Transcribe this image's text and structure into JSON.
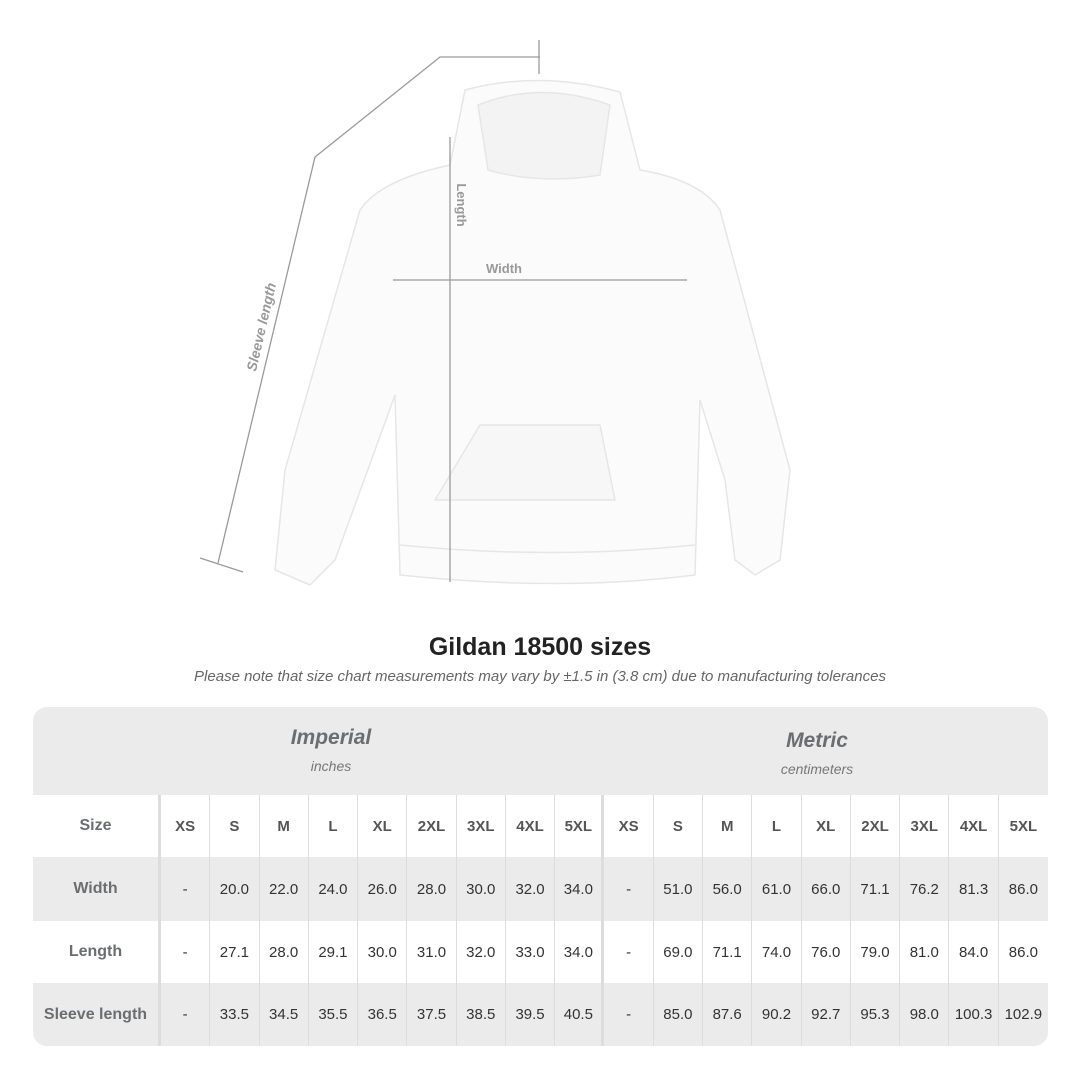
{
  "diagram": {
    "length_label": "Length",
    "width_label": "Width",
    "sleeve_label": "Sleeve length"
  },
  "title": "Gildan 18500 sizes",
  "note": "Please note that size chart measurements may vary by ±1.5 in (3.8 cm) due to manufacturing tolerances",
  "imperial": {
    "name": "Imperial",
    "unit": "inches"
  },
  "metric": {
    "name": "Metric",
    "unit": "centimeters"
  },
  "header": {
    "label": "Size",
    "sizes": [
      "XS",
      "S",
      "M",
      "L",
      "XL",
      "2XL",
      "3XL",
      "4XL",
      "5XL",
      "XS",
      "S",
      "M",
      "L",
      "XL",
      "2XL",
      "3XL",
      "4XL",
      "5XL"
    ]
  },
  "rows": [
    {
      "label": "Width",
      "values": [
        "-",
        "20.0",
        "22.0",
        "24.0",
        "26.0",
        "28.0",
        "30.0",
        "32.0",
        "34.0",
        "-",
        "51.0",
        "56.0",
        "61.0",
        "66.0",
        "71.1",
        "76.2",
        "81.3",
        "86.0"
      ]
    },
    {
      "label": "Length",
      "values": [
        "-",
        "27.1",
        "28.0",
        "29.1",
        "30.0",
        "31.0",
        "32.0",
        "33.0",
        "34.0",
        "-",
        "69.0",
        "71.1",
        "74.0",
        "76.0",
        "79.0",
        "81.0",
        "84.0",
        "86.0"
      ]
    },
    {
      "label": "Sleeve length",
      "values": [
        "-",
        "33.5",
        "34.5",
        "35.5",
        "36.5",
        "37.5",
        "38.5",
        "39.5",
        "40.5",
        "-",
        "85.0",
        "87.6",
        "90.2",
        "92.7",
        "95.3",
        "98.0",
        "100.3",
        "102.9"
      ]
    }
  ]
}
